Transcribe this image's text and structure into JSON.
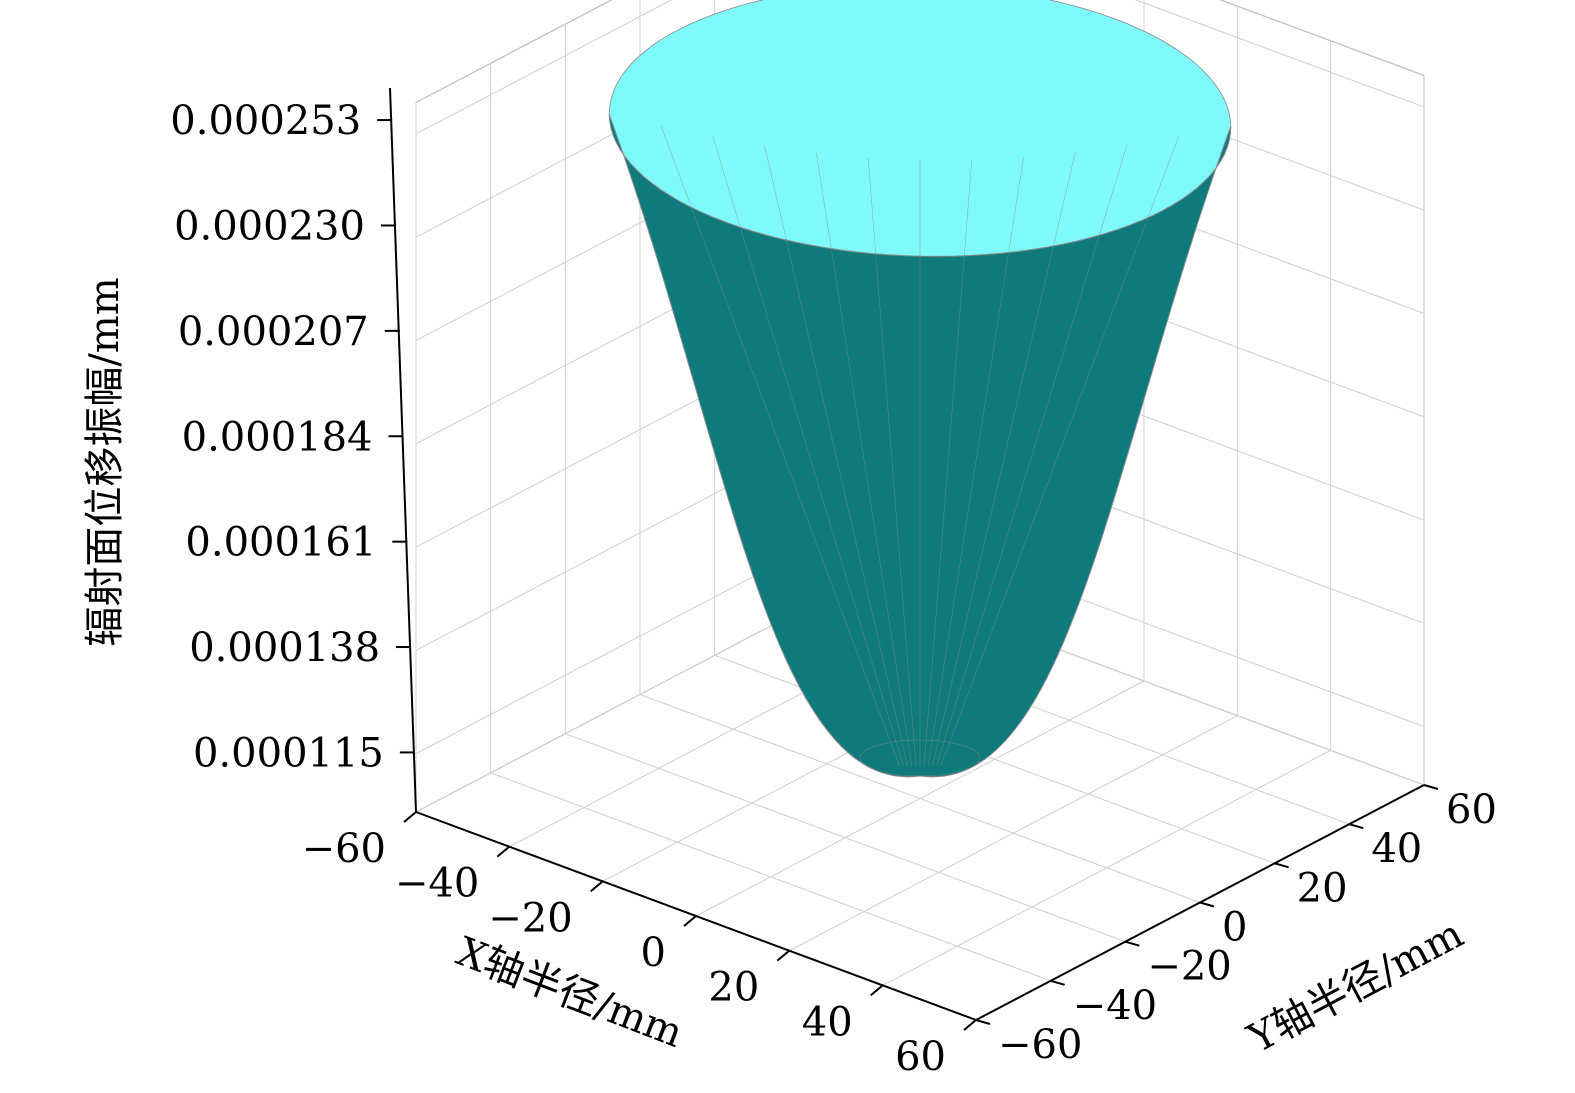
{
  "chart_data": {
    "type": "surface3d",
    "title": "",
    "surface_function": "paraboloid, minimum at center (0,0), rising toward circular rim",
    "surface_points": [
      {
        "r": 0,
        "z": 0.000107
      },
      {
        "r": 10,
        "z": 0.000119
      },
      {
        "r": 20,
        "z": 0.000144
      },
      {
        "r": 30,
        "z": 0.00018
      },
      {
        "r": 40,
        "z": 0.000216
      },
      {
        "r": 50,
        "z": 0.000247
      },
      {
        "r": 52,
        "z": 0.000253
      }
    ],
    "x_axis": {
      "label": "X轴半径/mm",
      "range": [
        -60,
        60
      ],
      "tick_labels": [
        "−60",
        "−40",
        "−20",
        "0",
        "20",
        "40",
        "60"
      ]
    },
    "y_axis": {
      "label": "Y轴半径/mm",
      "range": [
        -60,
        60
      ],
      "tick_labels": [
        "−60",
        "−40",
        "−20",
        "0",
        "20",
        "40",
        "60"
      ]
    },
    "z_axis": {
      "label": "辐射面位移振幅/mm",
      "range": [
        0.000102,
        0.00026
      ],
      "tick_values": [
        0.000115,
        0.000138,
        0.000161,
        0.000184,
        0.000207,
        0.00023,
        0.000253
      ],
      "tick_labels": [
        "0.000115",
        "0.000138",
        "0.000161",
        "0.000184",
        "0.000207",
        "0.000230",
        "0.000253"
      ]
    },
    "grid": true,
    "colors": {
      "surface_outer": "#0e7a7b",
      "surface_inner": "#7ffafa",
      "mesh": "#8a8a8a"
    }
  }
}
